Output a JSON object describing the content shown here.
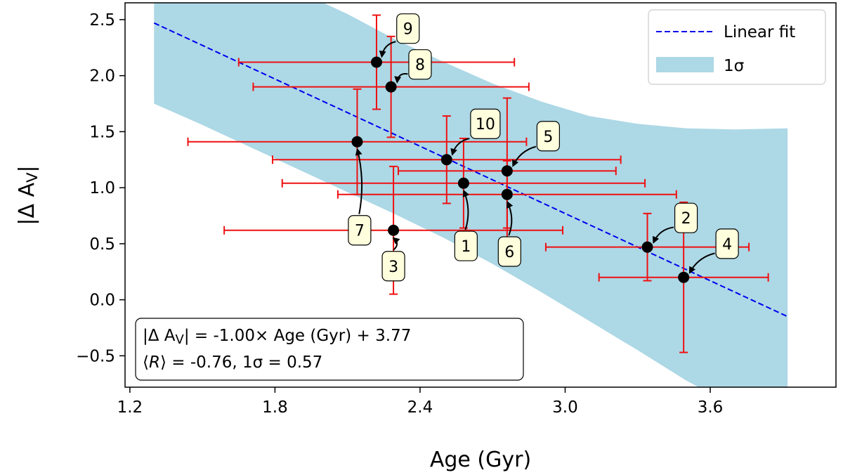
{
  "chart_data": {
    "type": "scatter",
    "xlabel": "Age (Gyr)",
    "ylabel": "|Δ A",
    "ylabel_sub": "V",
    "ylabel_end": "|",
    "xlim": [
      1.18,
      4.12
    ],
    "ylim": [
      -0.78,
      2.65
    ],
    "xticks": [
      1.2,
      1.8,
      2.4,
      3.0,
      3.6
    ],
    "xtick_labels": [
      "1.2",
      "1.8",
      "2.4",
      "3.0",
      "3.6"
    ],
    "yticks": [
      -0.5,
      0.0,
      0.5,
      1.0,
      1.5,
      2.0,
      2.5
    ],
    "ytick_labels": [
      "−0.5",
      "0.0",
      "0.5",
      "1.0",
      "1.5",
      "2.0",
      "2.5"
    ],
    "grid": false,
    "legend_position": "top-right",
    "legend": [
      {
        "label": "Linear fit",
        "style": "dashed-line",
        "color": "#0000ee"
      },
      {
        "label": "1σ",
        "style": "band",
        "color": "#add8e6"
      }
    ],
    "fit": {
      "slope": -1.0,
      "intercept": 3.77,
      "x_range": [
        1.3,
        3.92
      ]
    },
    "band": {
      "x": [
        1.3,
        1.5,
        1.7,
        1.9,
        2.1,
        2.3,
        2.5,
        2.7,
        2.9,
        3.1,
        3.3,
        3.5,
        3.7,
        3.92
      ],
      "upper": [
        2.82,
        2.82,
        2.8,
        2.75,
        2.55,
        2.32,
        2.12,
        1.93,
        1.77,
        1.64,
        1.57,
        1.53,
        1.52,
        1.53
      ],
      "lower": [
        1.75,
        1.56,
        1.36,
        1.16,
        0.96,
        0.76,
        0.55,
        0.32,
        0.07,
        -0.19,
        -0.45,
        -0.72,
        -0.95,
        -1.1
      ]
    },
    "points": [
      {
        "id": "1",
        "x": 2.58,
        "y": 1.04,
        "xerr_low": 0.75,
        "xerr_high": 0.75,
        "yerr_low": 0.4,
        "yerr_high": 0.4,
        "label_x": 2.59,
        "label_y": 0.48
      },
      {
        "id": "2",
        "x": 3.34,
        "y": 0.47,
        "xerr_low": 0.42,
        "xerr_high": 0.42,
        "yerr_low": 0.3,
        "yerr_high": 0.3,
        "label_x": 3.5,
        "label_y": 0.73
      },
      {
        "id": "3",
        "x": 2.29,
        "y": 0.62,
        "xerr_low": 0.7,
        "xerr_high": 0.7,
        "yerr_low": 0.57,
        "yerr_high": 0.57,
        "label_x": 2.29,
        "label_y": 0.3
      },
      {
        "id": "4",
        "x": 3.49,
        "y": 0.2,
        "xerr_low": 0.35,
        "xerr_high": 0.35,
        "yerr_low": 0.67,
        "yerr_high": 0.67,
        "label_x": 3.67,
        "label_y": 0.5
      },
      {
        "id": "5",
        "x": 2.76,
        "y": 1.15,
        "xerr_low": 0.45,
        "xerr_high": 0.45,
        "yerr_low": 0.65,
        "yerr_high": 0.65,
        "label_x": 2.93,
        "label_y": 1.46
      },
      {
        "id": "6",
        "x": 2.76,
        "y": 0.94,
        "xerr_low": 0.7,
        "xerr_high": 0.7,
        "yerr_low": 0.3,
        "yerr_high": 0.3,
        "label_x": 2.77,
        "label_y": 0.43
      },
      {
        "id": "7",
        "x": 2.14,
        "y": 1.41,
        "xerr_low": 0.7,
        "xerr_high": 0.7,
        "yerr_low": 0.47,
        "yerr_high": 0.47,
        "label_x": 2.15,
        "label_y": 0.62
      },
      {
        "id": "8",
        "x": 2.28,
        "y": 1.9,
        "xerr_low": 0.57,
        "xerr_high": 0.57,
        "yerr_low": 0.45,
        "yerr_high": 0.45,
        "label_x": 2.4,
        "label_y": 2.1
      },
      {
        "id": "9",
        "x": 2.22,
        "y": 2.12,
        "xerr_low": 0.57,
        "xerr_high": 0.57,
        "yerr_low": 0.42,
        "yerr_high": 0.42,
        "label_x": 2.35,
        "label_y": 2.42
      },
      {
        "id": "10",
        "x": 2.51,
        "y": 1.25,
        "xerr_low": 0.72,
        "xerr_high": 0.72,
        "yerr_low": 0.39,
        "yerr_high": 0.39,
        "label_x": 2.67,
        "label_y": 1.57
      }
    ],
    "equation_box": {
      "line1": "|Δ A",
      "line1_sub": "V",
      "line1_rest": "| = -1.00× Age (Gyr) + 3.77",
      "line2_pre": "⟨",
      "line2_R": "R",
      "line2_post": "⟩ = -0.76, 1σ = 0.57"
    },
    "colors": {
      "point": "#000000",
      "errorbar": "#ee1111",
      "fit": "#0000ee",
      "band": "#add8e6",
      "label_box": "#ffffdd"
    }
  }
}
